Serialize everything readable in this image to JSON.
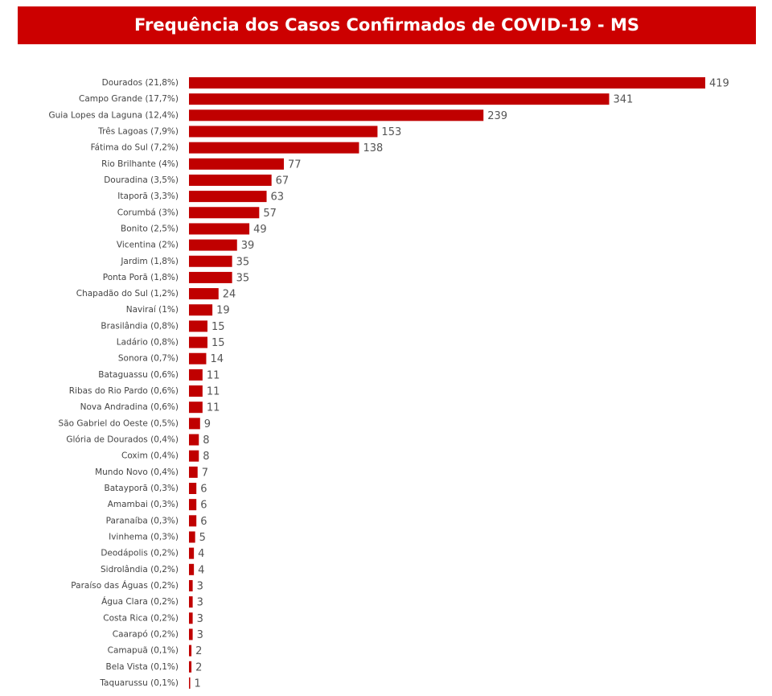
{
  "chart_data": {
    "type": "bar",
    "orientation": "horizontal",
    "title": "Frequência dos Casos Confirmados de COVID-19 - MS",
    "color": "#c00000",
    "categories": [
      "Dourados (21,8%)",
      "Campo Grande (17,7%)",
      "Guia Lopes da Laguna (12,4%)",
      "Três Lagoas (7,9%)",
      "Fátima do Sul (7,2%)",
      "Rio Brilhante (4%)",
      "Douradina (3,5%)",
      "Itaporã (3,3%)",
      "Corumbá (3%)",
      "Bonito (2,5%)",
      "Vicentina (2%)",
      "Jardim (1,8%)",
      "Ponta Porã (1,8%)",
      "Chapadão do Sul (1,2%)",
      "Naviraí (1%)",
      "Brasilândia (0,8%)",
      "Ladário (0,8%)",
      "Sonora (0,7%)",
      "Bataguassu (0,6%)",
      "Ribas do Rio Pardo (0,6%)",
      "Nova Andradina (0,6%)",
      "São Gabriel do Oeste (0,5%)",
      "Glória de Dourados (0,4%)",
      "Coxim (0,4%)",
      "Mundo Novo (0,4%)",
      "Batayporã (0,3%)",
      "Amambai (0,3%)",
      "Paranaíba (0,3%)",
      "Ivinhema (0,3%)",
      "Deodápolis (0,2%)",
      "Sidrolândia (0,2%)",
      "Paraíso das Águas (0,2%)",
      "Água Clara (0,2%)",
      "Costa Rica (0,2%)",
      "Caarapó (0,2%)",
      "Camapuã (0,1%)",
      "Bela Vista (0,1%)",
      "Taquarussu (0,1%)"
    ],
    "values": [
      419,
      341,
      239,
      153,
      138,
      77,
      67,
      63,
      57,
      49,
      39,
      35,
      35,
      24,
      19,
      15,
      15,
      14,
      11,
      11,
      11,
      9,
      8,
      8,
      7,
      6,
      6,
      6,
      5,
      4,
      4,
      3,
      3,
      3,
      3,
      2,
      2,
      1
    ]
  }
}
